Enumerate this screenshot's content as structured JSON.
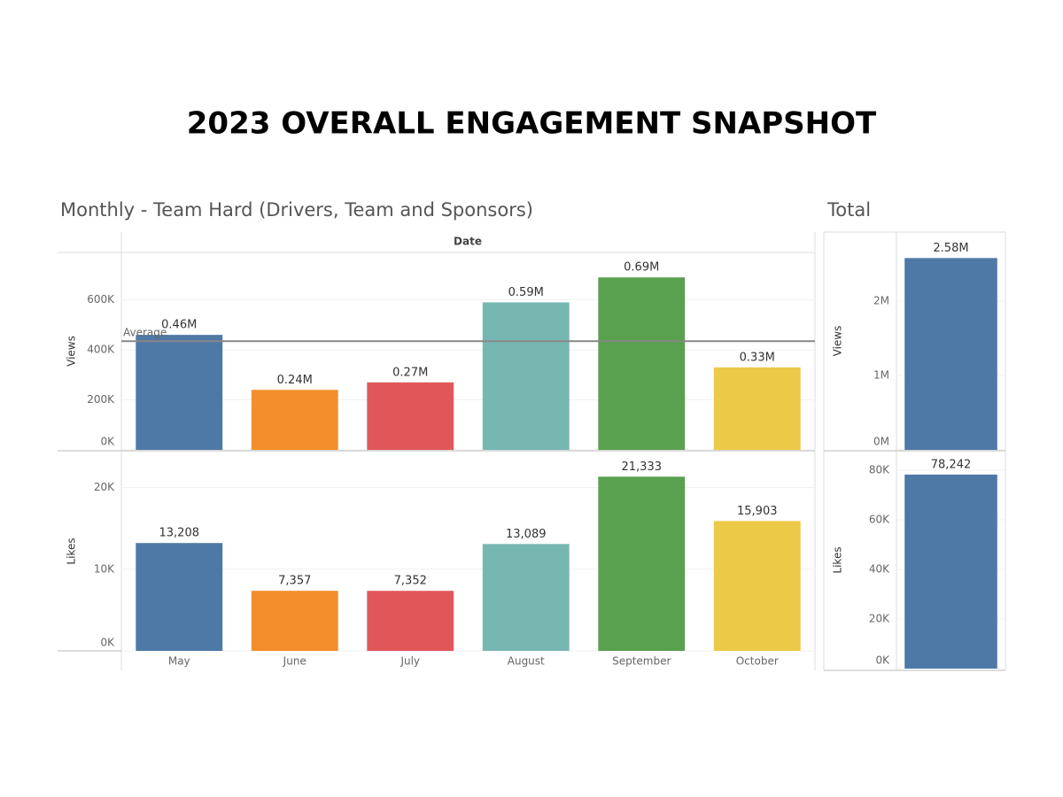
{
  "title": "2023 OVERALL ENGAGEMENT SNAPSHOT",
  "chart_data": [
    {
      "type": "bar",
      "title": "Monthly - Team Hard (Drivers, Team and Sponsors)",
      "header": "Date",
      "ylabel": "Views",
      "values": [
        460000,
        240000,
        270000,
        590000,
        690000,
        330000
      ],
      "value_labels": [
        "0.46M",
        "0.24M",
        "0.27M",
        "0.59M",
        "0.69M",
        "0.33M"
      ],
      "colors": [
        "#4e79a7",
        "#f28e2b",
        "#e15759",
        "#76b7b2",
        "#59a14f",
        "#edc948"
      ],
      "ylim": [
        0,
        790000
      ],
      "yticks": [
        {
          "value": 0,
          "label": "0K"
        },
        {
          "value": 200000,
          "label": "200K"
        },
        {
          "value": 400000,
          "label": "400K"
        },
        {
          "value": 600000,
          "label": "600K"
        }
      ],
      "reference_line": {
        "label": "Average",
        "value": 435000
      },
      "grid": true
    },
    {
      "type": "bar",
      "ylabel": "Likes",
      "categories": [
        "May",
        "June",
        "July",
        "August",
        "September",
        "October"
      ],
      "values": [
        13208,
        7357,
        7352,
        13089,
        21333,
        15903
      ],
      "value_labels": [
        "13,208",
        "7,357",
        "7,352",
        "13,089",
        "21,333",
        "15,903"
      ],
      "colors": [
        "#4e79a7",
        "#f28e2b",
        "#e15759",
        "#76b7b2",
        "#59a14f",
        "#edc948"
      ],
      "ylim": [
        0,
        24400
      ],
      "yticks": [
        {
          "value": 0,
          "label": "0K"
        },
        {
          "value": 10000,
          "label": "10K"
        },
        {
          "value": 20000,
          "label": "20K"
        }
      ],
      "grid": true
    },
    {
      "type": "bar",
      "title": "Total",
      "ylabel": "Views",
      "values": [
        2580000
      ],
      "value_labels": [
        "2.58M"
      ],
      "colors": [
        "#4e79a7"
      ],
      "ylim": [
        0,
        2930000
      ],
      "yticks": [
        {
          "value": 0,
          "label": "0M"
        },
        {
          "value": 1000000,
          "label": "1M"
        },
        {
          "value": 2000000,
          "label": "2M"
        }
      ],
      "grid": true
    },
    {
      "type": "bar",
      "ylabel": "Likes",
      "values": [
        78242
      ],
      "value_labels": [
        "78,242"
      ],
      "colors": [
        "#4e79a7"
      ],
      "ylim": [
        0,
        87500
      ],
      "yticks": [
        {
          "value": 0,
          "label": "0K"
        },
        {
          "value": 20000,
          "label": "20K"
        },
        {
          "value": 40000,
          "label": "40K"
        },
        {
          "value": 60000,
          "label": "60K"
        },
        {
          "value": 80000,
          "label": "80K"
        }
      ],
      "grid": true
    }
  ]
}
